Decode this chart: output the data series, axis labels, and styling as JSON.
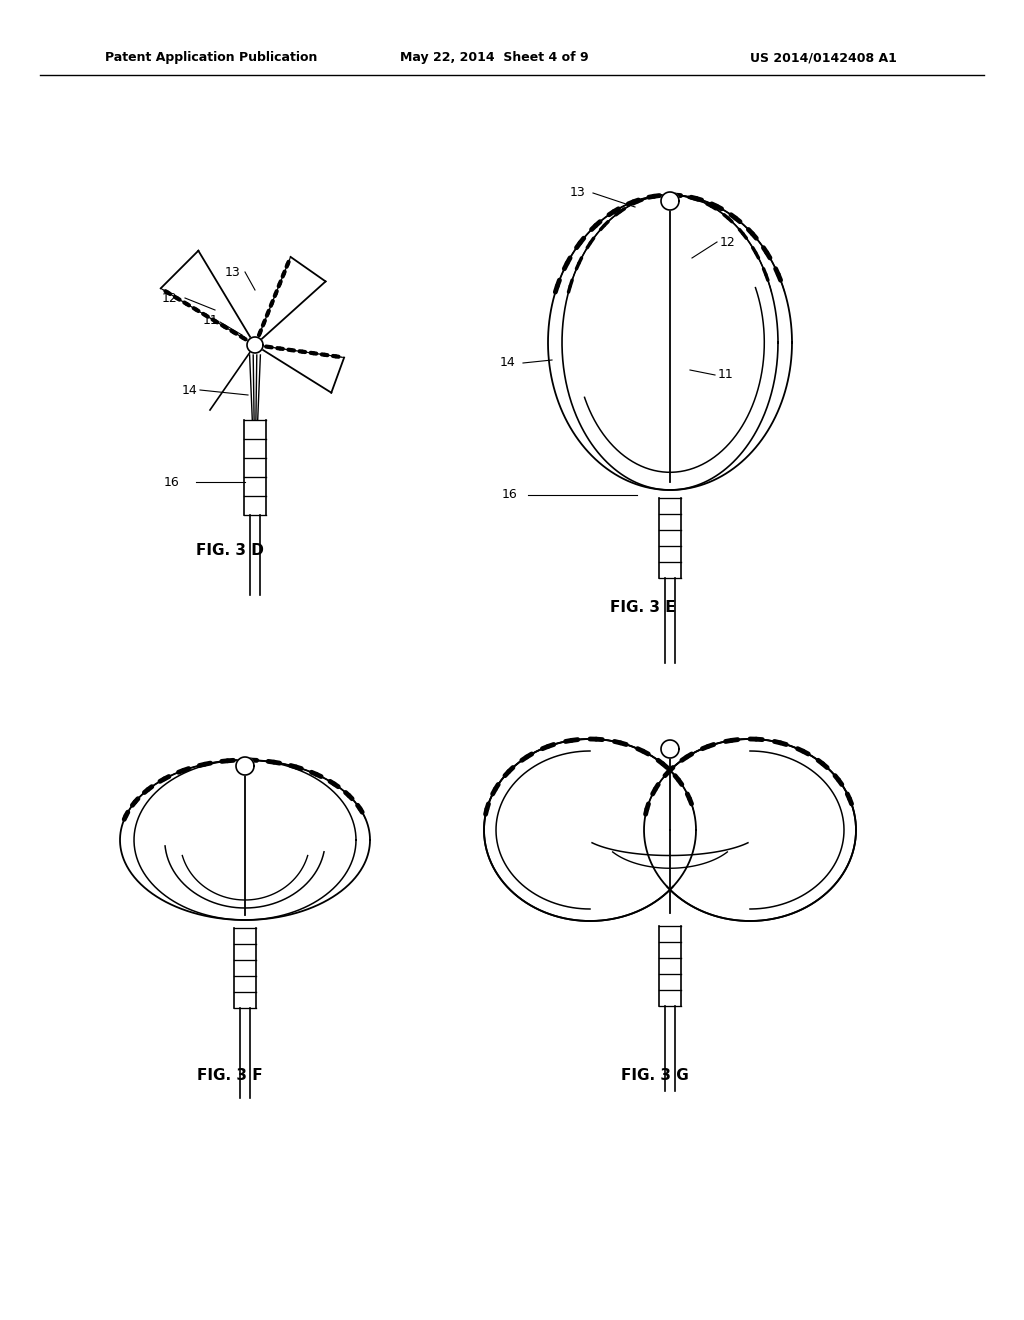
{
  "background_color": "#ffffff",
  "line_color": "#000000",
  "header_left": "Patent Application Publication",
  "header_mid": "May 22, 2014  Sheet 4 of 9",
  "header_right": "US 2014/0142408 A1",
  "fig_3d_label": "FIG. 3 D",
  "fig_3e_label": "FIG. 3 E",
  "fig_3f_label": "FIG. 3 F",
  "fig_3g_label": "FIG. 3 G"
}
